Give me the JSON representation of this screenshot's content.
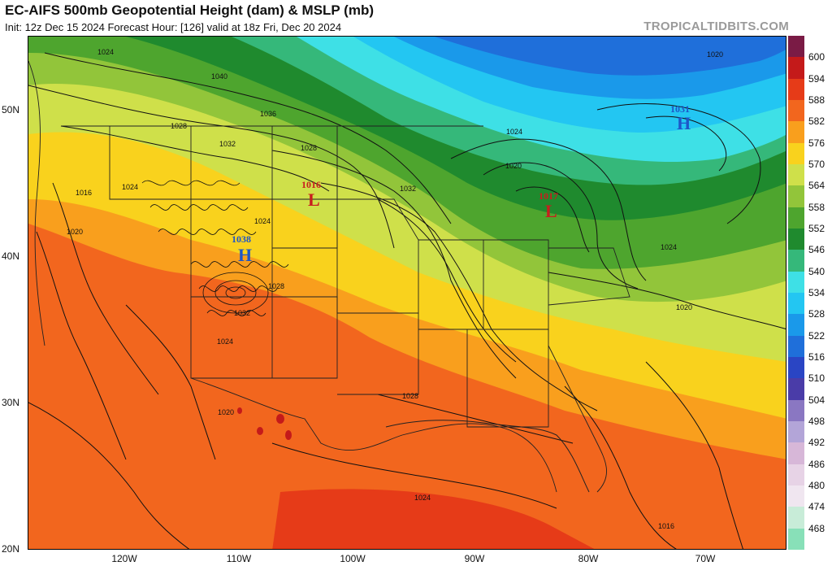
{
  "header": {
    "title": "EC-AIFS 500mb Geopotential Height (dam) & MSLP (mb)",
    "subtitle": "Init: 12z Dec 15 2024   Forecast Hour: [126]   valid at 18z Fri, Dec 20 2024",
    "brand": "TROPICALTIDBITS.COM"
  },
  "axes": {
    "lat_labels": [
      "50N",
      "40N",
      "30N",
      "20N"
    ],
    "lon_labels": [
      "120W",
      "110W",
      "100W",
      "90W",
      "80W",
      "70W"
    ]
  },
  "pressure_centers": [
    {
      "type": "H",
      "value": "1031",
      "color": "#1e56c8"
    },
    {
      "type": "L",
      "value": "1016",
      "color": "#c81e1e"
    },
    {
      "type": "L",
      "value": "1017",
      "color": "#c81e1e"
    },
    {
      "type": "H",
      "value": "1038",
      "color": "#1e56c8"
    }
  ],
  "isobar_labels": [
    "1024",
    "1040",
    "1036",
    "1028",
    "1032",
    "1024",
    "1016",
    "1020",
    "1024",
    "1028",
    "1024",
    "1032",
    "1020",
    "1024",
    "1032",
    "1028",
    "1024",
    "1020",
    "1028",
    "1024",
    "1020",
    "1016",
    "1020"
  ],
  "colorbar": {
    "labels": [
      "600",
      "594",
      "588",
      "582",
      "576",
      "570",
      "564",
      "558",
      "552",
      "546",
      "540",
      "534",
      "528",
      "522",
      "516",
      "510",
      "504",
      "498",
      "492",
      "486",
      "480",
      "474",
      "468"
    ],
    "colors": [
      "#7a1b45",
      "#c41a1a",
      "#e63b18",
      "#f2661e",
      "#f99f1d",
      "#f9d21d",
      "#cfe04a",
      "#92c53a",
      "#4ea52e",
      "#1f8a2e",
      "#35b87a",
      "#3ee0e6",
      "#23c6f2",
      "#1a99ea",
      "#1f6fda",
      "#2a45c4",
      "#4a3ca8",
      "#8a77c2",
      "#b3a5d8",
      "#d7b7d8",
      "#e7d3e6",
      "#f0e6f0",
      "#c8ecd8",
      "#88e0b8"
    ]
  }
}
